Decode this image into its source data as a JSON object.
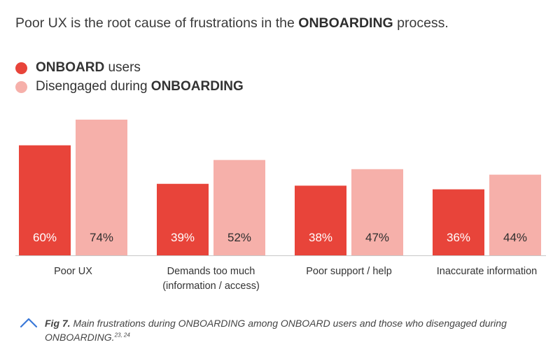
{
  "headline": {
    "prefix": "Poor UX is the root cause of frustrations in the ",
    "bold": "ONBOARDING",
    "suffix": " process."
  },
  "legend": [
    {
      "bold": "ONBOARD",
      "text": " users",
      "color": "#e8443a"
    },
    {
      "text": "Disengaged during ",
      "bold": "ONBOARDING",
      "color": "#f6b0aa"
    }
  ],
  "chart_data": {
    "type": "bar",
    "categories": [
      [
        "Poor UX"
      ],
      [
        "Demands too much",
        "(information / access)"
      ],
      [
        "Poor support / help"
      ],
      [
        "Inaccurate information"
      ]
    ],
    "series": [
      {
        "name": "ONBOARD users",
        "values": [
          60,
          39,
          38,
          36
        ],
        "color": "#e8443a"
      },
      {
        "name": "Disengaged during ONBOARDING",
        "values": [
          74,
          52,
          47,
          44
        ],
        "color": "#f6b0aa"
      }
    ],
    "value_suffix": "%",
    "grid": false,
    "legend_position": "top-left",
    "ylim": [
      0,
      74
    ]
  },
  "caption": {
    "fig": "Fig 7.",
    "text": " Main frustrations during ONBOARDING among ONBOARD users and those who disengaged during ONBOARDING.",
    "refs": "23, 24"
  },
  "colors": {
    "onboard": "#e8443a",
    "disengaged": "#f6b0aa",
    "icon": "#3a78d8"
  },
  "icons": {
    "caption": "chevron-up-icon"
  }
}
